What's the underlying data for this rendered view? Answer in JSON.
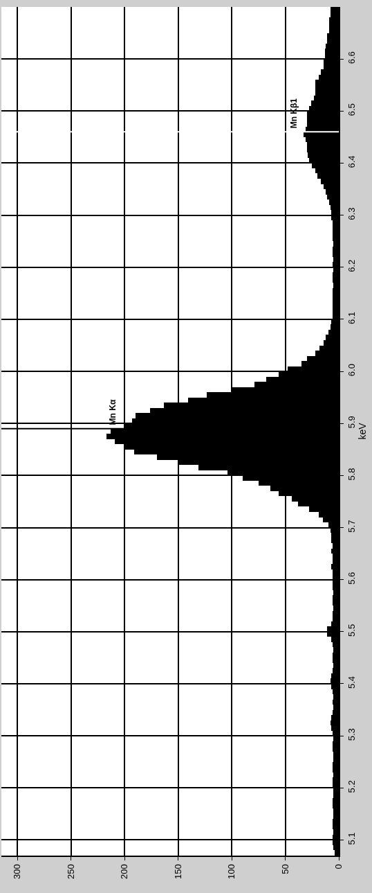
{
  "chart_data": {
    "type": "histogram",
    "orientation": "horizontal",
    "color": "#000000",
    "bins": [
      5.07,
      5.08,
      5.09,
      5.1,
      5.11,
      5.12,
      5.13,
      5.14,
      5.15,
      5.16,
      5.17,
      5.18,
      5.19,
      5.2,
      5.21,
      5.22,
      5.23,
      5.24,
      5.25,
      5.26,
      5.27,
      5.28,
      5.29,
      5.3,
      5.31,
      5.32,
      5.33,
      5.34,
      5.35,
      5.36,
      5.37,
      5.38,
      5.39,
      5.4,
      5.41,
      5.42,
      5.43,
      5.44,
      5.45,
      5.46,
      5.47,
      5.48,
      5.49,
      5.5,
      5.51,
      5.52,
      5.53,
      5.54,
      5.55,
      5.56,
      5.57,
      5.58,
      5.59,
      5.6,
      5.61,
      5.62,
      5.63,
      5.64,
      5.65,
      5.66,
      5.67,
      5.68,
      5.69,
      5.7,
      5.71,
      5.72,
      5.73,
      5.74,
      5.75,
      5.76,
      5.77,
      5.78,
      5.79,
      5.8,
      5.81,
      5.82,
      5.83,
      5.84,
      5.85,
      5.86,
      5.87,
      5.88,
      5.89,
      5.9,
      5.91,
      5.92,
      5.93,
      5.94,
      5.95,
      5.96,
      5.97,
      5.98,
      5.99,
      6.0,
      6.01,
      6.02,
      6.03,
      6.04,
      6.05,
      6.06,
      6.07,
      6.08,
      6.09,
      6.1,
      6.11,
      6.12,
      6.13,
      6.14,
      6.15,
      6.16,
      6.17,
      6.18,
      6.19,
      6.2,
      6.21,
      6.22,
      6.23,
      6.24,
      6.25,
      6.26,
      6.27,
      6.28,
      6.29,
      6.3,
      6.31,
      6.32,
      6.33,
      6.34,
      6.35,
      6.36,
      6.37,
      6.38,
      6.39,
      6.4,
      6.41,
      6.42,
      6.43,
      6.44,
      6.45,
      6.46,
      6.47,
      6.48,
      6.49,
      6.5,
      6.51,
      6.52,
      6.53,
      6.54,
      6.55,
      6.56,
      6.57,
      6.58,
      6.59,
      6.6,
      6.61,
      6.62,
      6.63,
      6.64,
      6.65,
      6.66,
      6.67,
      6.68,
      6.69,
      6.7
    ],
    "values": [
      4,
      5,
      6,
      6,
      5,
      6,
      6,
      5,
      5,
      6,
      6,
      5,
      5,
      6,
      6,
      5,
      6,
      6,
      5,
      5,
      6,
      6,
      5,
      6,
      7,
      8,
      7,
      6,
      5,
      6,
      5,
      6,
      7,
      8,
      7,
      6,
      5,
      6,
      6,
      5,
      6,
      7,
      11,
      11,
      7,
      6,
      6,
      5,
      6,
      6,
      5,
      6,
      6,
      6,
      6,
      7,
      6,
      6,
      7,
      6,
      7,
      7,
      8,
      10,
      15,
      19,
      28,
      38,
      44,
      56,
      64,
      75,
      90,
      104,
      131,
      149,
      170,
      191,
      200,
      209,
      217,
      213,
      200,
      193,
      190,
      176,
      163,
      141,
      123,
      100,
      79,
      68,
      56,
      48,
      35,
      30,
      22,
      18,
      14,
      12,
      10,
      8,
      7,
      6,
      6,
      6,
      6,
      6,
      6,
      5,
      6,
      6,
      5,
      6,
      5,
      6,
      6,
      5,
      6,
      6,
      6,
      6,
      7,
      7,
      8,
      9,
      11,
      12,
      14,
      17,
      20,
      22,
      25,
      28,
      29,
      30,
      30,
      31,
      33,
      31,
      30,
      30,
      30,
      28,
      26,
      23,
      22,
      22,
      22,
      19,
      17,
      14,
      14,
      13,
      13,
      12,
      11,
      11,
      9,
      9,
      9,
      8,
      8
    ],
    "ylabel": "keV",
    "xlim": [
      315,
      0
    ],
    "xticks": [
      0,
      50,
      100,
      150,
      200,
      250,
      300
    ],
    "ylim": [
      5.07,
      6.7
    ],
    "yticks": [
      5.1,
      5.2,
      5.3,
      5.4,
      5.5,
      5.6,
      5.7,
      5.8,
      5.9,
      {
        "value": 6.0,
        "label": "6.0"
      },
      6.1,
      6.2,
      6.3,
      6.4,
      6.5,
      6.6
    ],
    "grid": true,
    "ref_lines": [
      {
        "axis": "y",
        "value": 5.89,
        "color": "#000000",
        "label": "Mn Kα"
      },
      {
        "axis": "y",
        "value": 6.46,
        "color": "#ffffff",
        "label": "Mn Kβ1"
      }
    ]
  }
}
